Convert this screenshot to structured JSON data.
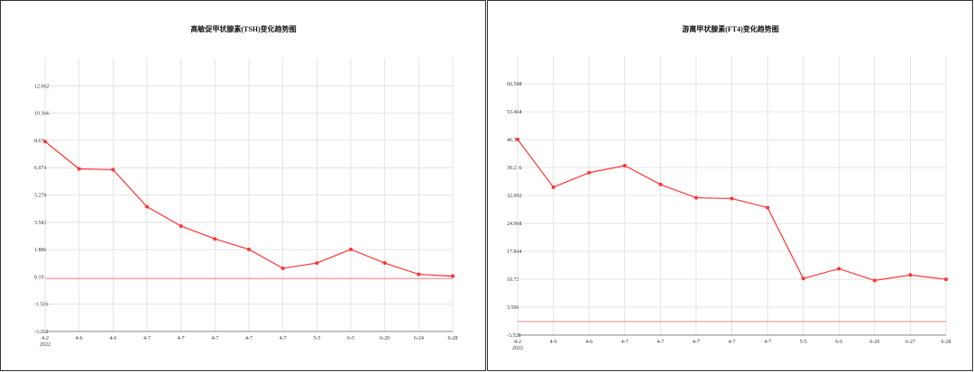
{
  "chart_data": [
    {
      "type": "line",
      "title": "高敏促甲状腺素(TSH)变化趋势图",
      "categories": [
        "4-2",
        "4-6",
        "4-6",
        "4-7",
        "4-7",
        "4-7",
        "4-7",
        "4-7",
        "5-5",
        "6-5",
        "6-20",
        "6-24",
        "6-28"
      ],
      "x_sublabel": "2022",
      "series": [
        {
          "color": "#ff3333",
          "values": [
            8.6,
            6.9,
            6.85,
            4.55,
            3.35,
            2.55,
            1.9,
            0.72,
            1.05,
            1.9,
            1.05,
            0.35,
            0.24
          ]
        }
      ],
      "ylim": [
        -3.202,
        13.758
      ],
      "yticks": [
        -3.202,
        -1.506,
        0.19,
        1.886,
        3.582,
        5.278,
        6.974,
        8.67,
        10.366,
        12.062
      ],
      "reference_line": 0.08,
      "reference_color": "#e88888",
      "grid": true
    },
    {
      "type": "line",
      "title": "游离甲状腺素(FT4)变化趋势图",
      "categories": [
        "4-2",
        "4-6",
        "4-6",
        "4-7",
        "4-7",
        "4-7",
        "4-7",
        "4-7",
        "5-5",
        "6-6",
        "6-20",
        "6-27",
        "6-28"
      ],
      "x_sublabel": "2022",
      "series": [
        {
          "color": "#ff3333",
          "values": [
            46.4,
            34.2,
            37.9,
            39.7,
            34.9,
            31.5,
            31.3,
            29.0,
            10.9,
            13.4,
            10.4,
            11.8,
            10.7
          ]
        }
      ],
      "ylim": [
        -3.528,
        67.712
      ],
      "yticks": [
        -3.528,
        3.596,
        10.72,
        17.844,
        24.968,
        32.092,
        39.216,
        46.34,
        53.464,
        60.588
      ],
      "reference_line": -0.08,
      "reference_color": "#e88888",
      "grid": true
    }
  ]
}
